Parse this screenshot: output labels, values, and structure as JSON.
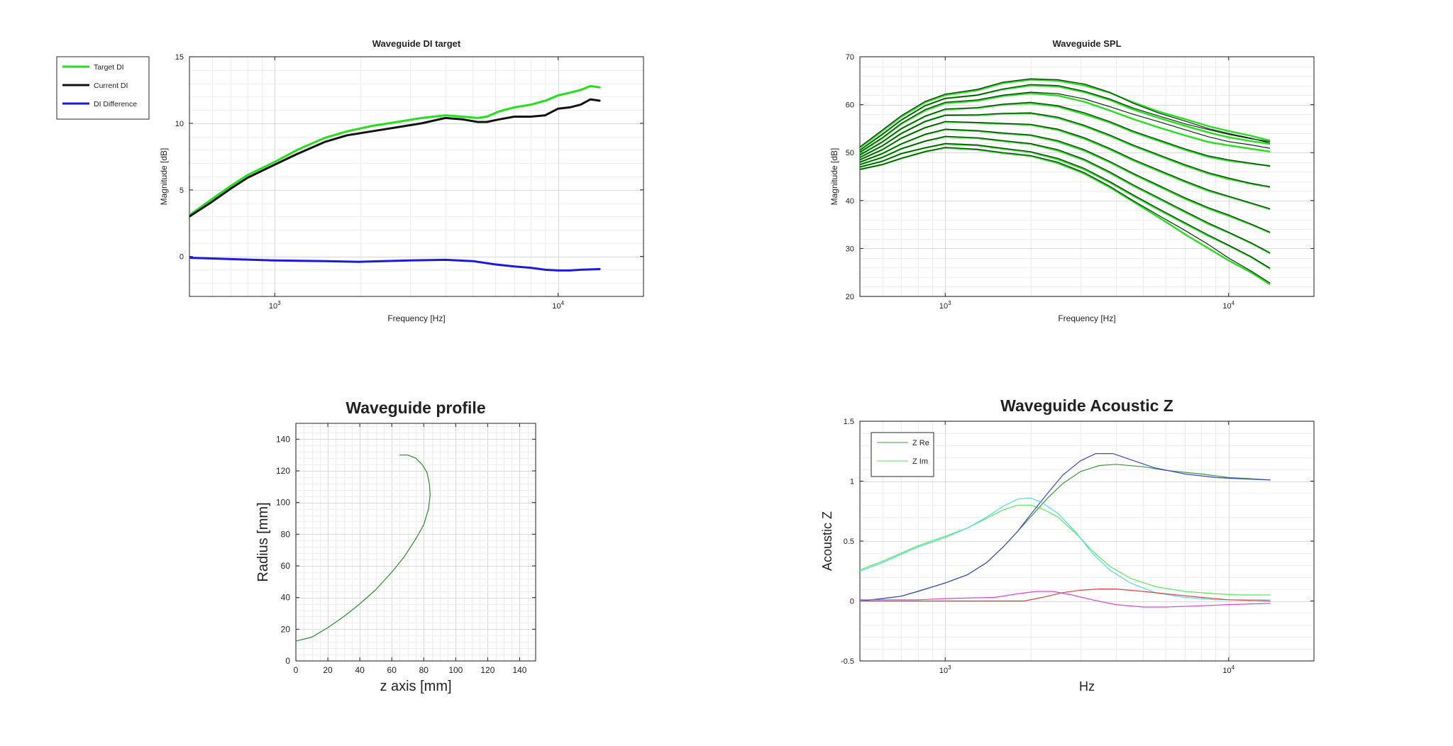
{
  "chart_data": [
    {
      "id": "di",
      "type": "line",
      "title": "Waveguide DI target",
      "xlabel": "Frequency [Hz]",
      "ylabel": "Magnitude [dB]",
      "xscale": "log",
      "xlim": [
        500,
        20000
      ],
      "ylim": [
        -3,
        15
      ],
      "xticks": [
        {
          "value": 1000,
          "base": "10",
          "exp": "3"
        },
        {
          "value": 10000,
          "base": "10",
          "exp": "4"
        }
      ],
      "yticks": [
        0,
        5,
        10,
        15
      ],
      "grid": true,
      "legend_position": "outside-top-left",
      "series": [
        {
          "name": "Target DI",
          "color": "#22e01a",
          "width": 3,
          "x": [
            500,
            600,
            700,
            800,
            1000,
            1200,
            1500,
            1800,
            2200,
            2700,
            3300,
            4000,
            4600,
            5200,
            5600,
            6200,
            7000,
            8000,
            9000,
            10000,
            11000,
            12000,
            13000,
            14000
          ],
          "y": [
            3.1,
            4.3,
            5.3,
            6.1,
            7.1,
            8.0,
            8.9,
            9.4,
            9.8,
            10.1,
            10.4,
            10.6,
            10.5,
            10.4,
            10.5,
            10.9,
            11.2,
            11.4,
            11.7,
            12.1,
            12.3,
            12.5,
            12.8,
            12.7
          ]
        },
        {
          "name": "Current DI",
          "color": "#111111",
          "width": 3,
          "x": [
            500,
            600,
            700,
            800,
            1000,
            1200,
            1500,
            1800,
            2200,
            2700,
            3300,
            4000,
            4600,
            5200,
            5600,
            6200,
            7000,
            8000,
            9000,
            10000,
            11000,
            12000,
            13000,
            14000
          ],
          "y": [
            3.0,
            4.1,
            5.1,
            5.9,
            6.9,
            7.7,
            8.6,
            9.1,
            9.4,
            9.7,
            10.0,
            10.4,
            10.3,
            10.1,
            10.1,
            10.3,
            10.5,
            10.5,
            10.6,
            11.1,
            11.2,
            11.4,
            11.8,
            11.7
          ]
        },
        {
          "name": "DI Difference",
          "color": "#1a1adc",
          "width": 3,
          "x": [
            500,
            700,
            1000,
            1500,
            2000,
            3000,
            4000,
            5000,
            6000,
            7000,
            8000,
            9000,
            10000,
            11000,
            12000,
            14000
          ],
          "y": [
            -0.1,
            -0.2,
            -0.3,
            -0.35,
            -0.4,
            -0.3,
            -0.25,
            -0.35,
            -0.6,
            -0.75,
            -0.85,
            -1.0,
            -1.05,
            -1.05,
            -1.0,
            -0.95
          ]
        }
      ]
    },
    {
      "id": "spl",
      "type": "line",
      "title": "Waveguide SPL",
      "xlabel": "Frequency [Hz]",
      "ylabel": "Magnitude [dB]",
      "xscale": "log",
      "xlim": [
        500,
        20000
      ],
      "ylim": [
        20,
        70
      ],
      "xticks": [
        {
          "value": 1000,
          "base": "10",
          "exp": "3"
        },
        {
          "value": 10000,
          "base": "10",
          "exp": "4"
        }
      ],
      "yticks": [
        20,
        30,
        40,
        50,
        60,
        70
      ],
      "grid": true,
      "x": [
        500,
        600,
        700,
        850,
        1000,
        1300,
        1600,
        2000,
        2500,
        3100,
        3800,
        4600,
        5700,
        7000,
        8500,
        10000,
        12000,
        14000
      ],
      "series": [
        {
          "target": [
            51.0,
            54.5,
            57.5,
            60.5,
            62.0,
            63.0,
            64.5,
            65.2,
            65.0,
            64.0,
            62.5,
            60.5,
            58.5,
            57.0,
            55.5,
            54.5,
            53.5,
            52.5
          ],
          "current": [
            51.2,
            54.7,
            57.7,
            60.7,
            62.2,
            63.2,
            64.7,
            65.4,
            65.2,
            64.3,
            62.6,
            60.3,
            58.2,
            56.6,
            55.0,
            54.0,
            53.0,
            52.0
          ]
        },
        {
          "target": [
            50.5,
            53.8,
            56.8,
            59.8,
            61.3,
            62.0,
            63.2,
            64.0,
            63.8,
            62.6,
            61.0,
            59.0,
            57.2,
            55.6,
            54.2,
            53.2,
            52.4,
            51.8
          ],
          "current": [
            50.5,
            53.8,
            56.8,
            59.8,
            61.3,
            62.0,
            63.3,
            64.2,
            64.0,
            62.8,
            61.2,
            59.3,
            57.6,
            56.0,
            54.8,
            53.8,
            52.9,
            52.3
          ]
        },
        {
          "target": [
            50.0,
            53.0,
            56.0,
            58.8,
            60.3,
            60.8,
            61.8,
            62.4,
            61.9,
            60.6,
            58.8,
            57.0,
            55.2,
            53.6,
            52.2,
            51.5,
            50.8,
            50.2
          ],
          "current": [
            50.1,
            53.1,
            56.1,
            59.0,
            60.5,
            61.0,
            62.0,
            62.6,
            62.3,
            61.2,
            59.6,
            58.0,
            56.4,
            54.8,
            53.3,
            52.3,
            51.6,
            50.9
          ]
        },
        {
          "target": [
            49.5,
            52.2,
            55.0,
            57.6,
            59.0,
            59.3,
            60.0,
            60.3,
            59.6,
            58.0,
            56.3,
            54.3,
            52.4,
            50.6,
            49.1,
            48.3,
            47.7,
            47.2
          ],
          "current": [
            49.5,
            52.2,
            55.0,
            57.6,
            59.1,
            59.4,
            60.1,
            60.5,
            59.8,
            58.3,
            56.5,
            54.5,
            52.6,
            50.8,
            49.3,
            48.5,
            47.8,
            47.2
          ]
        },
        {
          "target": [
            49.0,
            51.4,
            54.0,
            56.5,
            57.8,
            57.8,
            58.1,
            58.2,
            57.2,
            55.5,
            53.5,
            51.4,
            49.3,
            47.3,
            45.6,
            44.5,
            43.5,
            42.8
          ],
          "current": [
            49.0,
            51.4,
            54.0,
            56.5,
            57.8,
            57.9,
            58.2,
            58.3,
            57.4,
            55.7,
            53.7,
            51.6,
            49.5,
            47.5,
            45.8,
            44.7,
            43.6,
            42.9
          ]
        },
        {
          "target": [
            48.5,
            50.6,
            53.0,
            55.2,
            56.4,
            56.2,
            56.0,
            55.8,
            54.7,
            52.9,
            50.7,
            48.4,
            46.1,
            43.9,
            42.0,
            40.8,
            39.4,
            38.2
          ],
          "current": [
            48.5,
            50.6,
            53.0,
            55.2,
            56.5,
            56.3,
            56.1,
            55.9,
            54.9,
            53.1,
            50.9,
            48.6,
            46.3,
            44.1,
            42.2,
            40.9,
            39.5,
            38.3
          ]
        },
        {
          "target": [
            48.0,
            49.8,
            51.8,
            53.8,
            54.8,
            54.5,
            54.0,
            53.6,
            52.3,
            50.4,
            48.0,
            45.5,
            42.9,
            40.4,
            38.3,
            36.8,
            35.0,
            33.3
          ],
          "current": [
            48.0,
            49.8,
            51.8,
            53.8,
            54.9,
            54.6,
            54.1,
            53.7,
            52.5,
            50.6,
            48.2,
            45.7,
            43.1,
            40.6,
            38.5,
            37.0,
            35.1,
            33.4
          ]
        },
        {
          "target": [
            47.5,
            49.0,
            50.8,
            52.4,
            53.3,
            53.0,
            52.4,
            51.8,
            50.4,
            48.4,
            45.8,
            43.1,
            40.3,
            37.6,
            35.1,
            33.3,
            31.1,
            29.0
          ],
          "current": [
            47.5,
            49.0,
            50.8,
            52.4,
            53.4,
            53.1,
            52.5,
            51.9,
            50.6,
            48.6,
            46.0,
            43.3,
            40.5,
            37.8,
            35.3,
            33.4,
            31.2,
            29.1
          ]
        },
        {
          "target": [
            47.0,
            48.2,
            49.8,
            51.0,
            51.8,
            51.5,
            50.8,
            50.1,
            48.6,
            46.5,
            43.8,
            41.0,
            38.0,
            35.2,
            32.6,
            30.6,
            28.2,
            25.8
          ],
          "current": [
            47.0,
            48.2,
            49.8,
            51.0,
            51.9,
            51.6,
            50.9,
            50.2,
            48.8,
            46.7,
            44.0,
            41.2,
            38.2,
            35.4,
            32.8,
            30.7,
            28.3,
            25.9
          ]
        },
        {
          "target": [
            46.5,
            47.5,
            48.8,
            50.2,
            51.0,
            50.6,
            49.9,
            49.3,
            47.8,
            45.6,
            42.8,
            39.8,
            36.4,
            33.0,
            30.0,
            27.5,
            25.0,
            22.5
          ],
          "current": [
            46.5,
            47.5,
            48.8,
            50.2,
            51.1,
            50.7,
            50.0,
            49.4,
            48.0,
            45.8,
            43.0,
            40.0,
            36.8,
            33.8,
            30.8,
            28.0,
            25.3,
            22.8
          ]
        }
      ]
    },
    {
      "id": "profile",
      "type": "line",
      "title": "Waveguide profile",
      "xlabel": "z axis [mm]",
      "ylabel": "Radius [mm]",
      "xscale": "linear",
      "xlim": [
        0,
        150
      ],
      "ylim": [
        0,
        150
      ],
      "xticks": [
        0,
        20,
        40,
        60,
        80,
        100,
        120,
        140
      ],
      "yticks": [
        0,
        20,
        40,
        60,
        80,
        100,
        120,
        140
      ],
      "grid": true,
      "series": [
        {
          "color": "#2b8a2b",
          "x": [
            0,
            10,
            20,
            30,
            40,
            50,
            60,
            68,
            75,
            80,
            83,
            84,
            83.5,
            82,
            79,
            75,
            70,
            65
          ],
          "y": [
            12.5,
            15,
            21,
            28,
            36,
            45,
            56,
            66,
            77,
            86,
            96,
            105,
            112,
            119,
            124,
            128,
            130,
            130
          ]
        }
      ]
    },
    {
      "id": "acz",
      "type": "line",
      "title": "Waveguide Acoustic Z",
      "xlabel": "Hz",
      "ylabel": "Acoustic Z",
      "xscale": "log",
      "xlim": [
        500,
        20000
      ],
      "ylim": [
        -0.5,
        1.5
      ],
      "xticks": [
        {
          "value": 1000,
          "base": "10",
          "exp": "3"
        },
        {
          "value": 10000,
          "base": "10",
          "exp": "4"
        }
      ],
      "yticks": [
        -0.5,
        0,
        0.5,
        1,
        1.5
      ],
      "ytick_labels": [
        "-0.5",
        "0",
        "0.5",
        "1",
        "1.5"
      ],
      "grid": true,
      "legend_position": "top-left",
      "series": [
        {
          "name": "Z Re",
          "color": "#3a9a3a",
          "x": [
            500,
            600,
            700,
            800,
            1000,
            1200,
            1400,
            1600,
            1800,
            2000,
            2300,
            2600,
            3000,
            3500,
            4000,
            5000,
            6000,
            8000,
            10000,
            12000,
            14000
          ],
          "y": [
            0.0,
            0.02,
            0.04,
            0.08,
            0.15,
            0.22,
            0.32,
            0.45,
            0.58,
            0.7,
            0.86,
            0.98,
            1.08,
            1.13,
            1.14,
            1.12,
            1.09,
            1.06,
            1.03,
            1.02,
            1.01
          ]
        },
        {
          "name": "Z Im",
          "color": "#5ae85a",
          "x": [
            500,
            600,
            700,
            800,
            1000,
            1200,
            1400,
            1600,
            1800,
            2000,
            2200,
            2500,
            2900,
            3300,
            3800,
            4500,
            5500,
            7000,
            9000,
            11000,
            14000
          ],
          "y": [
            0.26,
            0.33,
            0.4,
            0.46,
            0.54,
            0.61,
            0.69,
            0.76,
            0.8,
            0.8,
            0.77,
            0.7,
            0.56,
            0.42,
            0.29,
            0.19,
            0.12,
            0.08,
            0.06,
            0.05,
            0.05
          ]
        },
        {
          "color": "#3848cc",
          "x": [
            500,
            600,
            700,
            800,
            1000,
            1200,
            1400,
            1600,
            1800,
            2000,
            2300,
            2600,
            3000,
            3400,
            3900,
            4500,
            5500,
            7000,
            9000,
            11000,
            14000
          ],
          "y": [
            0.0,
            0.02,
            0.04,
            0.08,
            0.15,
            0.22,
            0.32,
            0.45,
            0.58,
            0.72,
            0.9,
            1.05,
            1.17,
            1.23,
            1.23,
            1.18,
            1.11,
            1.06,
            1.03,
            1.02,
            1.01
          ]
        },
        {
          "color": "#4de0e0",
          "x": [
            500,
            600,
            700,
            800,
            1000,
            1200,
            1400,
            1600,
            1800,
            2000,
            2200,
            2500,
            2900,
            3300,
            3800,
            4500,
            5500,
            7000,
            9000,
            11000,
            14000
          ],
          "y": [
            0.25,
            0.32,
            0.39,
            0.45,
            0.53,
            0.61,
            0.7,
            0.79,
            0.85,
            0.86,
            0.82,
            0.73,
            0.57,
            0.4,
            0.26,
            0.15,
            0.07,
            0.03,
            0.01,
            0.01,
            0.01
          ]
        },
        {
          "color": "#e04040",
          "x": [
            500,
            800,
            1000,
            1500,
            1900,
            2200,
            2600,
            3000,
            3500,
            4000,
            5000,
            6000,
            8000,
            10000,
            14000
          ],
          "y": [
            0.0,
            0.0,
            0.0,
            0.0,
            0.0,
            0.03,
            0.07,
            0.09,
            0.1,
            0.1,
            0.08,
            0.06,
            0.03,
            0.01,
            0.0
          ]
        },
        {
          "color": "#e040e0",
          "x": [
            500,
            800,
            1000,
            1500,
            1800,
            2100,
            2400,
            2800,
            3300,
            4000,
            5000,
            6000,
            8000,
            10000,
            14000
          ],
          "y": [
            0.01,
            0.01,
            0.02,
            0.03,
            0.06,
            0.08,
            0.08,
            0.05,
            0.01,
            -0.03,
            -0.05,
            -0.05,
            -0.04,
            -0.03,
            -0.02
          ]
        }
      ]
    }
  ]
}
